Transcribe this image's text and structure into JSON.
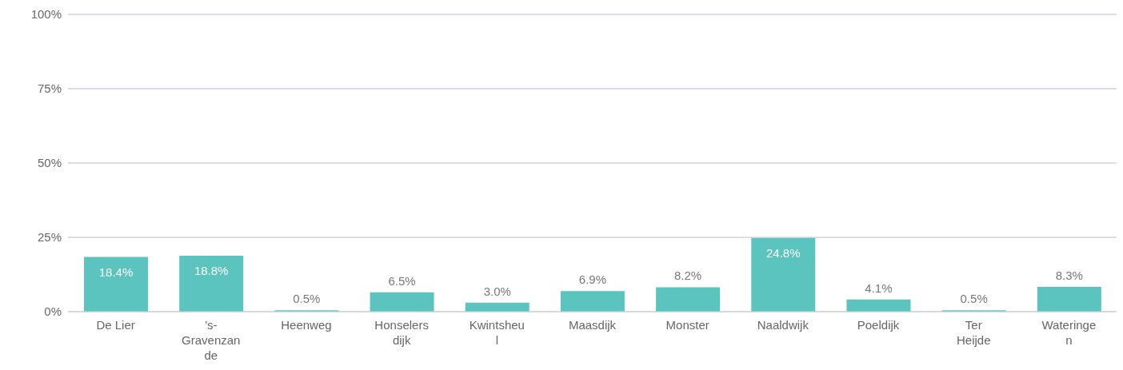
{
  "chart_data": {
    "type": "bar",
    "categories": [
      "De Lier",
      "’s-Gravenzande",
      "Heenweg",
      "Honselersdijk",
      "Kwintsheul",
      "Maasdijk",
      "Monster",
      "Naaldwijk",
      "Poeldijk",
      "Ter Heijde",
      "Wateringen"
    ],
    "values": [
      18.4,
      18.8,
      0.5,
      6.5,
      3.0,
      6.9,
      8.2,
      24.8,
      4.1,
      0.5,
      8.3
    ],
    "value_labels": [
      "18.4%",
      "18.8%",
      "0.5%",
      "6.5%",
      "3.0%",
      "6.9%",
      "8.2%",
      "24.8%",
      "4.1%",
      "0.5%",
      "8.3%"
    ],
    "color": "#5bc4bf",
    "ylim": [
      0,
      100
    ],
    "yticks": [
      {
        "value": 0,
        "label": "0%"
      },
      {
        "value": 25,
        "label": "25%"
      },
      {
        "value": 50,
        "label": "50%"
      },
      {
        "value": 75,
        "label": "75%"
      },
      {
        "value": 100,
        "label": "100%"
      }
    ],
    "grid": "y"
  }
}
